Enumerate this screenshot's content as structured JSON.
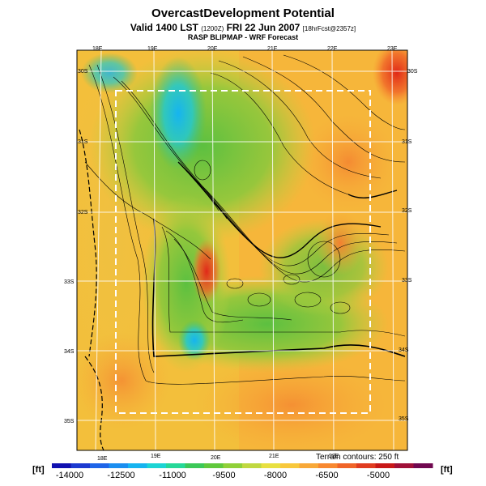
{
  "header": {
    "title": "OvercastDevelopment Potential",
    "valid_line": "Valid 1400 LST",
    "valid_code": "(1200Z)",
    "valid_date": "FRI 22 Jun 2007",
    "valid_fcst": "[18hrFcst@2357z]",
    "model_line": "RASP BLIPMAP - WRF Forecast"
  },
  "map": {
    "lon_labels_top": [
      "18E",
      "19E",
      "20E",
      "21E",
      "22E",
      "23E"
    ],
    "lon_labels_bottom": [
      "18E",
      "19E",
      "20E",
      "21E",
      "22E"
    ],
    "lat_labels_left": [
      "30S",
      "31S",
      "32S",
      "33S",
      "34S",
      "35S"
    ],
    "lat_labels_right": [
      "30S",
      "31S",
      "32S",
      "33S",
      "34S",
      "35S"
    ],
    "terrain_note": "Terrain contours: 250 ft"
  },
  "colorbar": {
    "unit_left": "[ft]",
    "unit_right": "[ft]",
    "tick_labels": [
      "-14000",
      "-12500",
      "-11000",
      "-9500",
      "-8000",
      "-6500",
      "-5000"
    ],
    "colors": [
      "#1010b0",
      "#1c3ad0",
      "#1e64e8",
      "#1a8ef0",
      "#16b4f0",
      "#1cd4d4",
      "#26d898",
      "#3cc858",
      "#60c83c",
      "#90d038",
      "#c0d840",
      "#e8e040",
      "#f8c83c",
      "#f8a838",
      "#f88830",
      "#f06428",
      "#e03c20",
      "#c81818",
      "#a01038",
      "#700850"
    ]
  }
}
